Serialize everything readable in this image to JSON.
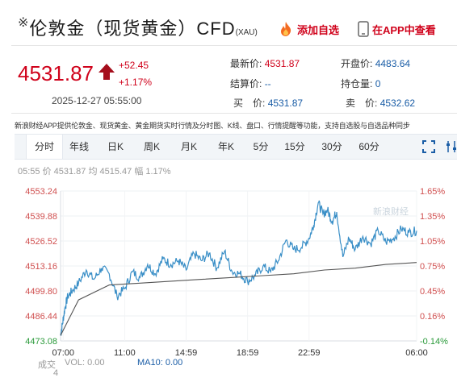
{
  "header": {
    "star": "※",
    "title": "伦敦金（现货黄金）CFD",
    "subtitle": "(XAU)",
    "add_watch": "添加自选",
    "view_app": "在APP中查看"
  },
  "quote": {
    "price": "4531.87",
    "change": "+52.45",
    "change_pct": "+1.17%",
    "timestamp": "2025-12-27 05:55:00"
  },
  "stats": {
    "latest_label": "最新价:",
    "latest_value": "4531.87",
    "open_label": "开盘价:",
    "open_value": "4483.64",
    "settle_label": "结算价:",
    "settle_value": "--",
    "oi_label": "持仓量:",
    "oi_value": "0",
    "buy_label": "买　价:",
    "buy_value": "4531.87",
    "sell_label": "卖　价:",
    "sell_value": "4532.62"
  },
  "note": "新浪财经APP提供伦敦金、现货黄金、黄金期货实时行情及分时图、K线、盘口、行情提醒等功能，支持自选股与自选品种同步",
  "tabs": [
    "分时",
    "年线",
    "日K",
    "周K",
    "月K",
    "年K",
    "5分",
    "15分",
    "30分",
    "60分"
  ],
  "active_tab": "分时",
  "info_line": "05:55 价 4531.87 均 4515.47 幅 1.17%",
  "watermark": "新浪财经",
  "bottom": {
    "label": "成交",
    "label2": "4",
    "vol": "VOL: 0.00",
    "ma10": "MA10: 0.00"
  },
  "colors": {
    "up": "#d0021b",
    "down": "#2a9a3a",
    "price_line": "#3a8fc7",
    "avg_line": "#555555"
  },
  "chart_data": {
    "type": "line",
    "y_left_ticks": [
      "4553.24",
      "4539.88",
      "4526.52",
      "4513.16",
      "4499.80",
      "4486.44",
      "4473.08"
    ],
    "y_right_ticks": [
      "1.65%",
      "1.35%",
      "1.05%",
      "0.75%",
      "0.45%",
      "0.16%",
      "-0.14%"
    ],
    "x_ticks": [
      "07:00",
      "11:00",
      "14:59",
      "18:59",
      "22:59",
      "06:00"
    ],
    "ylim": [
      4473.08,
      4553.24
    ],
    "x_range_hours": [
      6.83,
      30.0
    ],
    "series": [
      {
        "name": "价",
        "x": [
          6.83,
          6.95,
          7.1,
          7.3,
          7.6,
          8.0,
          8.5,
          9.0,
          9.5,
          10.0,
          10.5,
          11.0,
          11.5,
          12.0,
          12.5,
          13.0,
          13.5,
          14.0,
          14.5,
          15.0,
          15.5,
          16.0,
          16.5,
          17.0,
          17.5,
          18.0,
          18.5,
          19.0,
          19.5,
          20.0,
          20.5,
          21.0,
          21.5,
          22.0,
          22.5,
          23.0,
          23.3,
          23.6,
          23.9,
          24.2,
          24.5,
          24.8,
          25.2,
          25.6,
          26.0,
          26.5,
          27.0,
          27.5,
          28.0,
          28.5,
          29.0,
          29.5,
          30.0
        ],
        "y": [
          4476,
          4482,
          4490,
          4497,
          4500,
          4504,
          4511,
          4506,
          4512,
          4509,
          4497,
          4501,
          4510,
          4507,
          4514,
          4509,
          4517,
          4514,
          4516,
          4511,
          4520,
          4516,
          4520,
          4512,
          4521,
          4510,
          4509,
          4505,
          4508,
          4513,
          4510,
          4516,
          4527,
          4522,
          4523,
          4528,
          4535,
          4547,
          4541,
          4543,
          4537,
          4542,
          4518,
          4528,
          4522,
          4529,
          4525,
          4532,
          4526,
          4528,
          4533,
          4531,
          4532
        ]
      },
      {
        "name": "均",
        "x": [
          6.83,
          8,
          10,
          12,
          14,
          16,
          18,
          20,
          22,
          24,
          26,
          28,
          30
        ],
        "y": [
          4476,
          4495,
          4503,
          4504,
          4505,
          4506,
          4507,
          4508,
          4509,
          4511,
          4512,
          4514,
          4515
        ]
      }
    ]
  }
}
